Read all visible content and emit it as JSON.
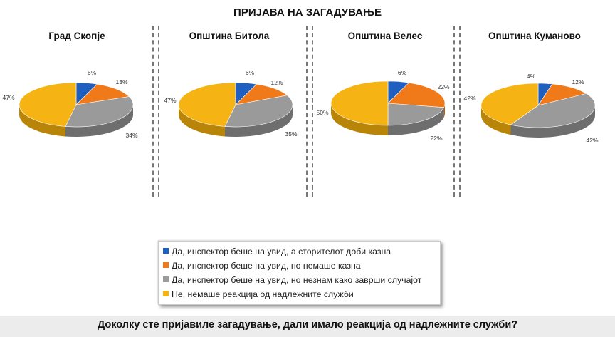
{
  "title": "ПРИЈАВА НА ЗАГАДУВАЊЕ",
  "question": "Доколку сте пријавиле загадување, дали имало реакција од надлежните служби?",
  "colors": [
    "#1f5fbf",
    "#f07a19",
    "#9a9a9a",
    "#f5b414"
  ],
  "legend": [
    "Да, инспектор беше на увид, а сторителот доби казна",
    "Да, инспектор беше на увид, но немаше казна",
    "Да, инспектор беше на увид, но незнам како заврши случајот",
    "Не, немаше реакција од надлежните служби"
  ],
  "chart_data": [
    {
      "type": "pie",
      "title": "Град Скопје",
      "values": [
        6,
        13,
        34,
        47
      ],
      "labels": [
        "6%",
        "13%",
        "34%",
        "47%"
      ]
    },
    {
      "type": "pie",
      "title": "Општина Битола",
      "values": [
        6,
        12,
        35,
        47
      ],
      "labels": [
        "6%",
        "12%",
        "35%",
        "47%"
      ]
    },
    {
      "type": "pie",
      "title": "Општина Велес",
      "values": [
        6,
        22,
        22,
        50
      ],
      "labels": [
        "6%",
        "22%",
        "22%",
        "50%"
      ]
    },
    {
      "type": "pie",
      "title": "Општина Куманово",
      "values": [
        4,
        12,
        42,
        42
      ],
      "labels": [
        "4%",
        "12%",
        "42%",
        "42%"
      ]
    }
  ]
}
